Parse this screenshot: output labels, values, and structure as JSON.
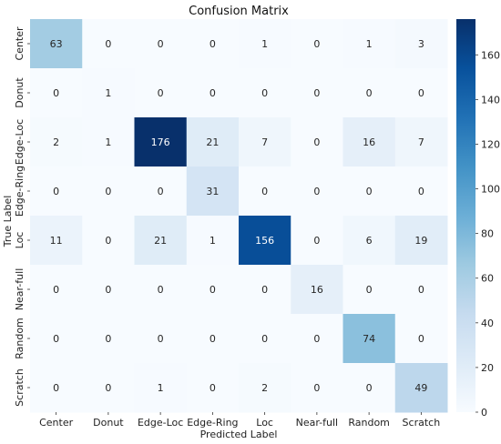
{
  "chart_data": {
    "type": "heatmap",
    "title": "Confusion Matrix",
    "xlabel": "Predicted Label",
    "ylabel": "True Label",
    "x_categories": [
      "Center",
      "Donut",
      "Edge-Loc",
      "Edge-Ring",
      "Loc",
      "Near-full",
      "Random",
      "Scratch"
    ],
    "y_categories": [
      "Center",
      "Donut",
      "Edge-Loc",
      "Edge-Ring",
      "Loc",
      "Near-full",
      "Random",
      "Scratch"
    ],
    "values": [
      [
        63,
        0,
        0,
        0,
        1,
        0,
        1,
        3
      ],
      [
        0,
        1,
        0,
        0,
        0,
        0,
        0,
        0
      ],
      [
        2,
        1,
        176,
        21,
        7,
        0,
        16,
        7
      ],
      [
        0,
        0,
        0,
        31,
        0,
        0,
        0,
        0
      ],
      [
        11,
        0,
        21,
        1,
        156,
        0,
        6,
        19
      ],
      [
        0,
        0,
        0,
        0,
        0,
        16,
        0,
        0
      ],
      [
        0,
        0,
        0,
        0,
        0,
        0,
        74,
        0
      ],
      [
        0,
        0,
        1,
        0,
        2,
        0,
        0,
        49
      ]
    ],
    "colormap": "Blues",
    "color_range": [
      0,
      176
    ],
    "colorbar_ticks": [
      0,
      20,
      40,
      60,
      80,
      100,
      120,
      140,
      160
    ],
    "colorbar_tick_labels": [
      "0",
      "20",
      "40",
      "60",
      "80",
      "100",
      "120",
      "140",
      "160"
    ]
  }
}
